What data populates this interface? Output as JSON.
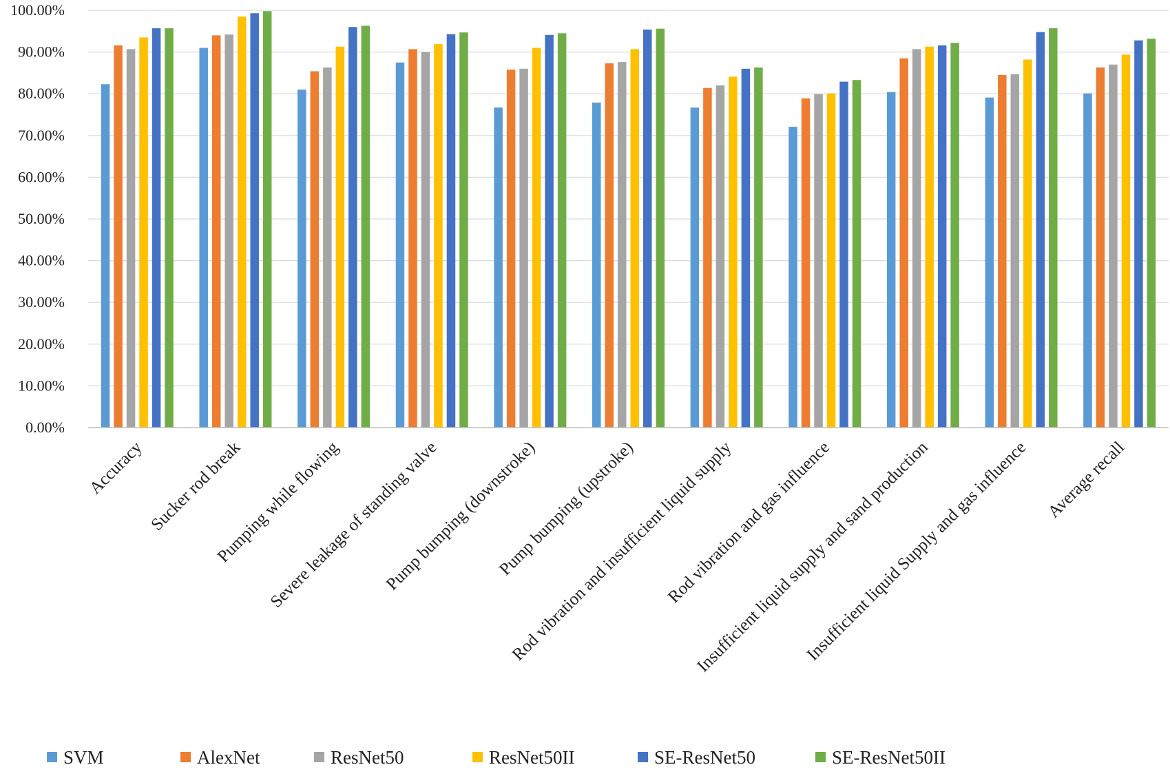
{
  "chart_data": {
    "type": "bar",
    "title": "",
    "xlabel": "",
    "ylabel": "",
    "ylim": [
      0,
      100
    ],
    "yticks": [
      "0.00%",
      "10.00%",
      "20.00%",
      "30.00%",
      "40.00%",
      "50.00%",
      "60.00%",
      "70.00%",
      "80.00%",
      "90.00%",
      "100.00%"
    ],
    "grid": true,
    "legend_position": "bottom",
    "categories": [
      "Accuracy",
      "Sucker rod break",
      "Pumping while flowing",
      "Severe leakage of standing valve",
      "Pump bumping (downstroke)",
      "Pump bumping (upstroke)",
      "Rod vibration and insufficient liquid supply",
      "Rod vibration and gas influence",
      "Insufficient liquid supply and sand production",
      "Insufficient liquid Supply and gas influence",
      "Average recall"
    ],
    "series": [
      {
        "name": "SVM",
        "color": "#5b9bd5",
        "values": [
          82.3,
          91.0,
          81.0,
          87.5,
          76.7,
          77.9,
          76.7,
          72.1,
          80.4,
          79.1,
          80.1
        ]
      },
      {
        "name": "AlexNet",
        "color": "#ed7d31",
        "values": [
          91.6,
          94.0,
          85.4,
          90.7,
          85.8,
          87.3,
          81.4,
          78.9,
          88.5,
          84.5,
          86.3
        ]
      },
      {
        "name": "ResNet50",
        "color": "#a5a5a5",
        "values": [
          90.7,
          94.2,
          86.3,
          90.0,
          86.0,
          87.6,
          82.0,
          79.9,
          90.7,
          84.7,
          87.0
        ]
      },
      {
        "name": "ResNet50II",
        "color": "#ffc000",
        "values": [
          93.5,
          98.5,
          91.3,
          91.9,
          91.0,
          90.7,
          84.1,
          80.1,
          91.3,
          88.2,
          89.4
        ]
      },
      {
        "name": "SE-ResNet50",
        "color": "#4472c4",
        "values": [
          95.7,
          99.3,
          96.0,
          94.3,
          94.1,
          95.4,
          86.0,
          82.9,
          91.6,
          94.8,
          92.8
        ]
      },
      {
        "name": "SE-ResNet50II",
        "color": "#70ad47",
        "values": [
          95.7,
          99.8,
          96.3,
          94.7,
          94.5,
          95.6,
          86.3,
          83.3,
          92.2,
          95.7,
          93.2
        ]
      }
    ]
  }
}
